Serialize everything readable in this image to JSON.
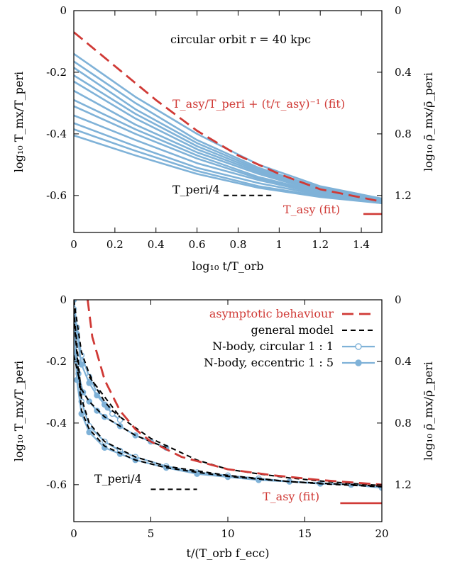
{
  "colors": {
    "red": "#d03a36",
    "blue": "#7fb2d8",
    "black": "#000000"
  },
  "chart_data": [
    {
      "type": "line",
      "title": "",
      "xlabel": "log₁₀ t/T_orb",
      "ylabel": "log₁₀ T_mx/T_peri",
      "ylabel_right": "log₁₀ ρ̄_mx/ρ̄_peri",
      "xlim": [
        0,
        1.5
      ],
      "ylim": [
        -0.72,
        0
      ],
      "x_ticks": [
        "0",
        "0.2",
        "0.4",
        "0.6",
        "0.8",
        "1",
        "1.2",
        "1.4"
      ],
      "y_ticks": [
        "0",
        "-0.2",
        "-0.4",
        "-0.6"
      ],
      "y_ticks_right": [
        "0",
        "0.4",
        "0.8",
        "1.2"
      ],
      "annotations": {
        "orbit": "circular orbit r = 40 kpc",
        "fit": "T_asy/T_peri + (t/τ_asy)⁻¹ (fit)",
        "peri": "T_peri/4",
        "asy": "T_asy (fit)"
      },
      "series": [
        {
          "style": "blue-solid",
          "x": [
            0,
            0.3,
            0.6,
            0.9,
            1.2,
            1.5
          ],
          "y": [
            -0.14,
            -0.28,
            -0.4,
            -0.5,
            -0.57,
            -0.61
          ]
        },
        {
          "style": "blue-solid",
          "x": [
            0,
            0.3,
            0.6,
            0.9,
            1.2,
            1.5
          ],
          "y": [
            -0.165,
            -0.3,
            -0.42,
            -0.51,
            -0.575,
            -0.613
          ]
        },
        {
          "style": "blue-solid",
          "x": [
            0,
            0.3,
            0.6,
            0.9,
            1.2,
            1.5
          ],
          "y": [
            -0.185,
            -0.32,
            -0.43,
            -0.515,
            -0.58,
            -0.615
          ]
        },
        {
          "style": "blue-solid",
          "x": [
            0,
            0.3,
            0.6,
            0.9,
            1.2,
            1.5
          ],
          "y": [
            -0.21,
            -0.335,
            -0.44,
            -0.52,
            -0.582,
            -0.615
          ]
        },
        {
          "style": "blue-solid",
          "x": [
            0,
            0.3,
            0.6,
            0.9,
            1.2,
            1.5
          ],
          "y": [
            -0.23,
            -0.35,
            -0.45,
            -0.525,
            -0.585,
            -0.617
          ]
        },
        {
          "style": "blue-solid",
          "x": [
            0,
            0.3,
            0.6,
            0.9,
            1.2,
            1.5
          ],
          "y": [
            -0.26,
            -0.37,
            -0.46,
            -0.53,
            -0.588,
            -0.618
          ]
        },
        {
          "style": "blue-solid",
          "x": [
            0,
            0.3,
            0.6,
            0.9,
            1.2,
            1.5
          ],
          "y": [
            -0.29,
            -0.385,
            -0.47,
            -0.54,
            -0.59,
            -0.62
          ]
        },
        {
          "style": "blue-solid",
          "x": [
            0,
            0.3,
            0.6,
            0.9,
            1.2,
            1.5
          ],
          "y": [
            -0.31,
            -0.4,
            -0.48,
            -0.545,
            -0.592,
            -0.62
          ]
        },
        {
          "style": "blue-solid",
          "x": [
            0,
            0.3,
            0.6,
            0.9,
            1.2,
            1.5
          ],
          "y": [
            -0.34,
            -0.42,
            -0.495,
            -0.55,
            -0.595,
            -0.622
          ]
        },
        {
          "style": "blue-solid",
          "x": [
            0,
            0.3,
            0.6,
            0.9,
            1.2,
            1.5
          ],
          "y": [
            -0.365,
            -0.44,
            -0.51,
            -0.56,
            -0.598,
            -0.623
          ]
        },
        {
          "style": "blue-solid",
          "x": [
            0,
            0.3,
            0.6,
            0.9,
            1.2,
            1.5
          ],
          "y": [
            -0.385,
            -0.455,
            -0.52,
            -0.57,
            -0.602,
            -0.625
          ]
        },
        {
          "style": "blue-solid",
          "x": [
            0,
            0.3,
            0.6,
            0.9,
            1.2,
            1.5
          ],
          "y": [
            -0.405,
            -0.47,
            -0.53,
            -0.575,
            -0.605,
            -0.625
          ]
        },
        {
          "style": "red-dashed",
          "x": [
            0,
            0.2,
            0.4,
            0.6,
            0.8,
            1.0,
            1.2,
            1.5
          ],
          "y": [
            -0.07,
            -0.18,
            -0.29,
            -0.39,
            -0.47,
            -0.53,
            -0.58,
            -0.62
          ]
        },
        {
          "style": "black-dashed",
          "x": [
            0.73,
            0.97
          ],
          "y": [
            -0.6,
            -0.6
          ]
        },
        {
          "style": "red-solid",
          "x": [
            1.41,
            1.5
          ],
          "y": [
            -0.66,
            -0.66
          ]
        }
      ]
    },
    {
      "type": "line",
      "title": "",
      "xlabel": "t/(T_orb f_ecc)",
      "ylabel": "log₁₀ T_mx/T_peri",
      "ylabel_right": "log₁₀ ρ̄_mx/ρ̄_peri",
      "xlim": [
        0,
        20
      ],
      "ylim": [
        -0.72,
        0
      ],
      "x_ticks": [
        "0",
        "5",
        "10",
        "15",
        "20"
      ],
      "y_ticks": [
        "0",
        "-0.2",
        "-0.4",
        "-0.6"
      ],
      "y_ticks_right": [
        "0",
        "0.4",
        "0.8",
        "1.2"
      ],
      "annotations": {
        "peri": "T_peri/4",
        "asy": "T_asy (fit)"
      },
      "legend": {
        "position": "top-right",
        "entries": [
          {
            "label": "asymptotic behaviour",
            "style": "red-dashed",
            "red": true
          },
          {
            "label": "general model",
            "style": "black-dashed",
            "red": false
          },
          {
            "label": "N-body, circular 1 : 1",
            "style": "blue-open",
            "red": false
          },
          {
            "label": "N-body, eccentric 1 : 5",
            "style": "blue-filled",
            "red": false
          }
        ]
      },
      "series": [
        {
          "style": "blue-open",
          "x": [
            0,
            0.2,
            0.5,
            1,
            1.5,
            2,
            2.5,
            3
          ],
          "y": [
            -0.0,
            -0.09,
            -0.18,
            -0.25,
            -0.3,
            -0.34,
            -0.37,
            -0.39
          ]
        },
        {
          "style": "blue-filled",
          "x": [
            0,
            0.2,
            0.5,
            1,
            1.5,
            2,
            2.2
          ],
          "y": [
            -0.0,
            -0.11,
            -0.21,
            -0.27,
            -0.31,
            -0.34,
            -0.35
          ]
        },
        {
          "style": "blue-filled",
          "x": [
            0,
            0.3,
            0.6,
            1,
            1.5,
            2,
            3,
            4,
            5,
            6
          ],
          "y": [
            -0.17,
            -0.24,
            -0.3,
            -0.33,
            -0.36,
            -0.38,
            -0.41,
            -0.44,
            -0.46,
            -0.48
          ]
        },
        {
          "style": "blue-open",
          "x": [
            0,
            0.2,
            0.5,
            1,
            2,
            3,
            4,
            6,
            8,
            10,
            12,
            14,
            16,
            18,
            20
          ],
          "y": [
            -0.03,
            -0.2,
            -0.33,
            -0.41,
            -0.46,
            -0.49,
            -0.51,
            -0.54,
            -0.56,
            -0.57,
            -0.58,
            -0.59,
            -0.595,
            -0.6,
            -0.61
          ]
        },
        {
          "style": "blue-filled",
          "x": [
            0,
            0.2,
            0.5,
            1,
            2,
            3,
            4,
            6,
            8,
            10,
            12,
            14,
            16,
            18,
            20
          ],
          "y": [
            -0.06,
            -0.26,
            -0.37,
            -0.43,
            -0.48,
            -0.5,
            -0.52,
            -0.545,
            -0.565,
            -0.575,
            -0.585,
            -0.59,
            -0.597,
            -0.6,
            -0.61
          ]
        },
        {
          "style": "black-dashed",
          "x": [
            0,
            0.5,
            1,
            1.5,
            2,
            2.5,
            3
          ],
          "y": [
            -0.0,
            -0.17,
            -0.24,
            -0.29,
            -0.33,
            -0.36,
            -0.38
          ]
        },
        {
          "style": "black-dashed",
          "x": [
            0,
            0.5,
            1,
            2,
            3,
            4,
            5,
            6
          ],
          "y": [
            -0.18,
            -0.29,
            -0.33,
            -0.38,
            -0.41,
            -0.44,
            -0.46,
            -0.48
          ]
        },
        {
          "style": "black-dashed",
          "x": [
            0,
            0.5,
            1,
            2,
            4,
            6,
            8,
            10,
            12,
            14,
            16,
            18,
            20
          ],
          "y": [
            -0.03,
            -0.32,
            -0.4,
            -0.46,
            -0.51,
            -0.54,
            -0.555,
            -0.57,
            -0.58,
            -0.59,
            -0.595,
            -0.6,
            -0.605
          ]
        },
        {
          "style": "black-dashed",
          "x": [
            0,
            0.5,
            1,
            2,
            4,
            6,
            8,
            10,
            12,
            14,
            16,
            18,
            20
          ],
          "y": [
            -0.05,
            -0.36,
            -0.42,
            -0.475,
            -0.52,
            -0.545,
            -0.56,
            -0.573,
            -0.582,
            -0.59,
            -0.597,
            -0.602,
            -0.607
          ]
        },
        {
          "style": "black-dashed",
          "x": [
            1,
            3,
            5,
            8,
            10,
            12,
            14,
            16,
            18,
            20
          ],
          "y": [
            -0.25,
            -0.38,
            -0.45,
            -0.52,
            -0.55,
            -0.565,
            -0.578,
            -0.588,
            -0.596,
            -0.603
          ]
        },
        {
          "style": "red-dashed",
          "x": [
            0.9,
            1.2,
            2,
            3,
            4,
            5,
            7,
            10,
            13,
            16,
            20
          ],
          "y": [
            0,
            -0.12,
            -0.26,
            -0.36,
            -0.42,
            -0.46,
            -0.51,
            -0.55,
            -0.57,
            -0.585,
            -0.6
          ]
        },
        {
          "style": "black-dashed",
          "x": [
            5,
            8
          ],
          "y": [
            -0.615,
            -0.615
          ]
        },
        {
          "style": "red-solid",
          "x": [
            17.3,
            20
          ],
          "y": [
            -0.66,
            -0.66
          ]
        }
      ]
    }
  ]
}
